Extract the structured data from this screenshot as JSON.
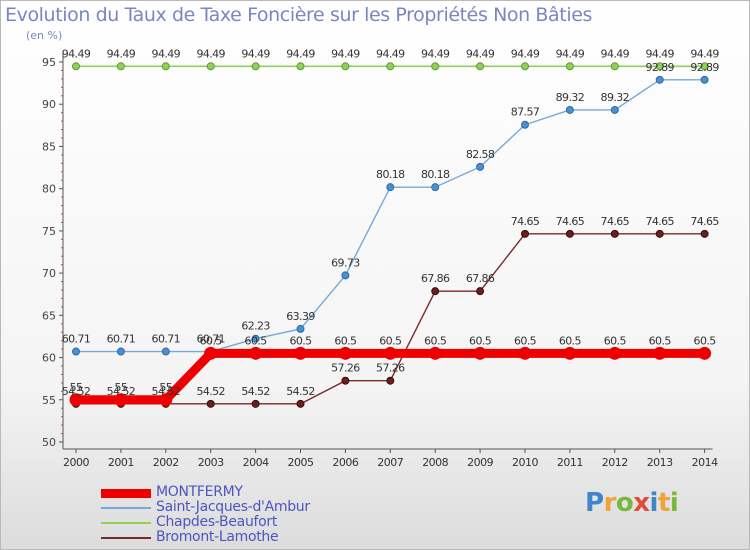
{
  "title": "Evolution du Taux de Taxe Foncière sur les Propriétés Non Bâties",
  "unit": "(en %)",
  "brand": {
    "letters": [
      "P",
      "r",
      "o",
      "x",
      "i",
      "t",
      "i"
    ],
    "colors": [
      "#3f86c8",
      "#f2a23a",
      "#78b83b",
      "#e24b3c",
      "#3f86c8",
      "#f2a23a",
      "#78b83b"
    ]
  },
  "chart_data": {
    "type": "line",
    "ylim": [
      50,
      95
    ],
    "y_ticks": [
      50,
      55,
      60,
      65,
      70,
      75,
      80,
      85,
      90,
      95
    ],
    "categories": [
      "2000",
      "2001",
      "2002",
      "2003",
      "2004",
      "2005",
      "2006",
      "2007",
      "2008",
      "2009",
      "2010",
      "2011",
      "2012",
      "2013",
      "2014"
    ],
    "grid": false,
    "legend_position": "bottom-left",
    "series": [
      {
        "name": "MONTFERMY",
        "color": "#ee0000",
        "values": [
          55,
          55,
          55,
          60.5,
          60.5,
          60.5,
          60.5,
          60.5,
          60.5,
          60.5,
          60.5,
          60.5,
          60.5,
          60.5,
          60.5
        ],
        "labels": [
          "55",
          "55",
          "55",
          "60.5",
          "60.5",
          "60.5",
          "60.5",
          "60.5",
          "60.5",
          "60.5",
          "60.5",
          "60.5",
          "60.5",
          "60.5",
          "60.5"
        ]
      },
      {
        "name": "Saint-Jacques-d'Ambur",
        "color": "#78a8d8",
        "values": [
          60.71,
          60.71,
          60.71,
          60.71,
          62.23,
          63.39,
          69.73,
          80.18,
          80.18,
          82.58,
          87.57,
          89.32,
          89.32,
          92.89,
          92.89
        ],
        "labels": [
          "60.71",
          "60.71",
          "60.71",
          "60.71",
          "62.23",
          "63.39",
          "69.73",
          "80.18",
          "80.18",
          "82.58",
          "87.57",
          "89.32",
          "89.32",
          "92.89",
          "92.89"
        ]
      },
      {
        "name": "Chapdes-Beaufort",
        "color": "#8ed05a",
        "values": [
          94.49,
          94.49,
          94.49,
          94.49,
          94.49,
          94.49,
          94.49,
          94.49,
          94.49,
          94.49,
          94.49,
          94.49,
          94.49,
          94.49,
          94.49
        ],
        "labels": [
          "94.49",
          "94.49",
          "94.49",
          "94.49",
          "94.49",
          "94.49",
          "94.49",
          "94.49",
          "94.49",
          "94.49",
          "94.49",
          "94.49",
          "94.49",
          "94.49",
          "94.49"
        ]
      },
      {
        "name": "Bromont-Lamothe",
        "color": "#7a2a2a",
        "values": [
          54.52,
          54.52,
          54.52,
          54.52,
          54.52,
          54.52,
          57.26,
          57.26,
          67.86,
          67.86,
          74.65,
          74.65,
          74.65,
          74.65,
          74.65
        ],
        "labels": [
          "54.52",
          "54.52",
          "54.52",
          "54.52",
          "54.52",
          "54.52",
          "57.26",
          "57.26",
          "67.86",
          "67.86",
          "74.65",
          "74.65",
          "74.65",
          "74.65",
          "74.65"
        ]
      }
    ]
  }
}
